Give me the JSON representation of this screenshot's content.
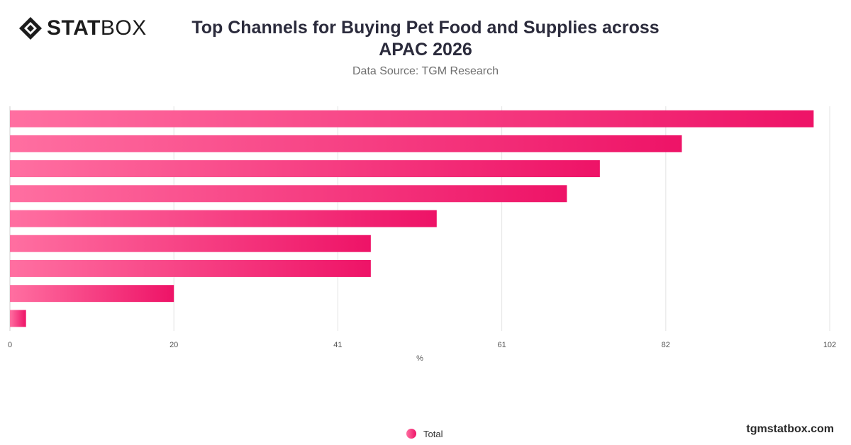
{
  "brand": {
    "logo_bold": "STAT",
    "logo_light": "BOX"
  },
  "header": {
    "title_line1": "Top Channels for Buying Pet Food and Supplies across",
    "title_line2": "APAC 2026",
    "subtitle": "Data Source: TGM Research"
  },
  "footer": {
    "site": "tgmstatbox.com"
  },
  "colors": {
    "bar_start": "#ff6fa1",
    "bar_end": "#ee1367",
    "grid": "#e3e3e3"
  },
  "chart_data": {
    "type": "bar",
    "orientation": "horizontal",
    "title": "Top Channels for Buying Pet Food and Supplies across APAC 2026",
    "subtitle": "Data Source: TGM Research",
    "xlabel": "%",
    "ylabel": "",
    "xlim": [
      0,
      102
    ],
    "x_ticks": [
      "0",
      "20",
      "41",
      "61",
      "82",
      "102"
    ],
    "x_tick_values": [
      0,
      20.4,
      40.8,
      61.2,
      81.6,
      102
    ],
    "grid": true,
    "legend_position": "bottom-center",
    "series": [
      {
        "name": "Total",
        "values": [
          100,
          83.6,
          73.4,
          69.3,
          53.1,
          44.9,
          44.9,
          20.4,
          2
        ]
      }
    ]
  }
}
